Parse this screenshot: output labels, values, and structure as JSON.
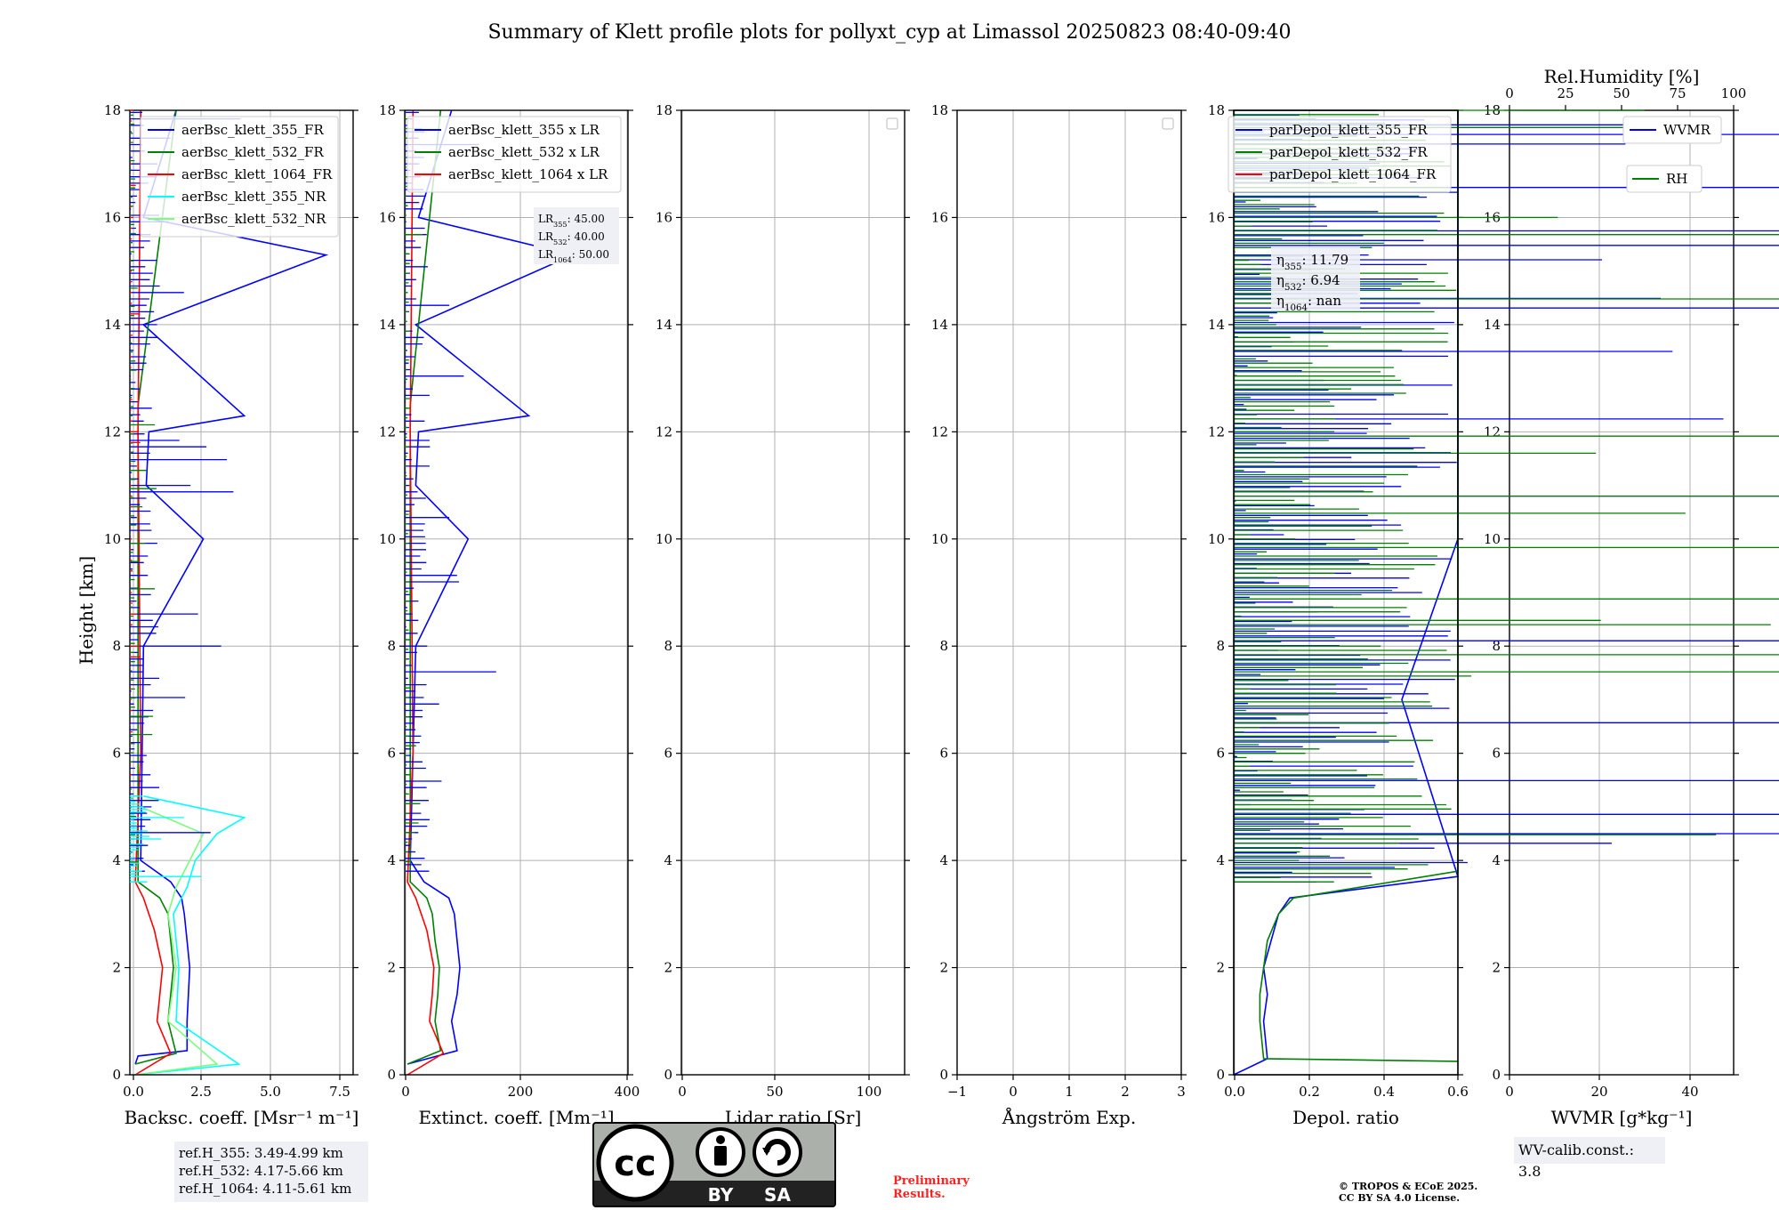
{
  "title": "Summary of Klett profile plots for pollyxt_cyp at Limassol 20250823 08:40-09:40",
  "y_label": "Height [km]",
  "y_ticks": [
    "0",
    "2",
    "4",
    "6",
    "8",
    "10",
    "12",
    "14",
    "16",
    "18"
  ],
  "panels": [
    {
      "xlabel": "Backsc. coeff. [Msr⁻¹ m⁻¹]",
      "xticks": [
        "0.0",
        "2.5",
        "5.0",
        "7.5"
      ],
      "legend": [
        "aerBsc_klett_355_FR",
        "aerBsc_klett_532_FR",
        "aerBsc_klett_1064_FR",
        "aerBsc_klett_355_NR",
        "aerBsc_klett_532_NR"
      ]
    },
    {
      "xlabel": "Extinct. coeff. [Mm⁻¹]",
      "xticks": [
        "0",
        "200",
        "400"
      ],
      "legend": [
        "aerBsc_klett_355 x LR",
        "aerBsc_klett_532 x LR",
        "aerBsc_klett_1064 x LR"
      ],
      "lr_box": {
        "lr355": "LR355: 45.00",
        "lr532": "LR532: 40.00",
        "lr1064": "LR1064: 50.00"
      }
    },
    {
      "xlabel": "Lidar ratio [Sr]",
      "xticks": [
        "0",
        "50",
        "100"
      ]
    },
    {
      "xlabel": "Ångström Exp.",
      "xticks": [
        "−1",
        "0",
        "1",
        "2",
        "3"
      ]
    },
    {
      "xlabel": "Depol. ratio",
      "xticks": [
        "0.0",
        "0.2",
        "0.4",
        "0.6"
      ],
      "legend": [
        "parDepol_klett_355_FR",
        "parDepol_klett_532_FR",
        "parDepol_klett_1064_FR"
      ],
      "eta_box": {
        "eta355": "η355: 11.79",
        "eta532": "η532: 6.94",
        "eta1064": "η1064: nan"
      }
    },
    {
      "xlabel": "WVMR [g*kg⁻¹]",
      "xticks": [
        "0",
        "20",
        "40"
      ],
      "top_label": "Rel.Humidity [%]",
      "top_ticks": [
        "0",
        "25",
        "50",
        "75",
        "100"
      ],
      "legend": [
        "WVMR",
        "RH"
      ]
    }
  ],
  "ref_heights": [
    "ref.H_355: 3.49-4.99 km",
    "ref.H_532: 4.17-5.66 km",
    "ref.H_1064: 4.11-5.61 km"
  ],
  "wv_calib": "WV-calib.const.: 3.8",
  "preliminary": [
    "Preliminary",
    "Results."
  ],
  "copyright": [
    "© TROPOS & ECoE 2025.",
    "CC BY SA 4.0 License."
  ],
  "license_logo": {
    "cc": "cc",
    "by": "BY",
    "sa": "SA"
  },
  "colors": {
    "c355": "#0000ff",
    "c532": "#008000",
    "c1064": "#ff0000",
    "c355nr": "#00ffff",
    "c532nr": "#7cfc7c",
    "grid": "#b0b0b0"
  },
  "chart_data": [
    {
      "type": "line",
      "title": "",
      "xlabel": "Backsc. coeff. [Msr⁻¹ m⁻¹]",
      "ylabel": "Height [km]",
      "xlim": [
        -0.2,
        8.0
      ],
      "ylim": [
        0,
        18
      ],
      "grid": true,
      "legend": "top-right",
      "series": [
        {
          "name": "aerBsc_klett_355_FR",
          "x": [
            0.0,
            0.1,
            1.9,
            1.9,
            2.0,
            1.9,
            1.8,
            1.7,
            1.3,
            0.2,
            0.3,
            2.5,
            0.4,
            0.5,
            4.0,
            0.3,
            7.0,
            0.3,
            1.5
          ],
          "y": [
            0.2,
            0.35,
            0.45,
            1.0,
            2.0,
            2.5,
            3.0,
            3.3,
            3.6,
            4.0,
            8.0,
            10.0,
            11.0,
            12.0,
            12.3,
            14.0,
            15.3,
            16.0,
            18.0
          ]
        },
        {
          "name": "aerBsc_klett_532_FR",
          "x": [
            0.0,
            1.5,
            1.2,
            1.3,
            1.4,
            1.3,
            1.2,
            0.9,
            0.1,
            0.1,
            0.1,
            1.5
          ],
          "y": [
            0.2,
            0.4,
            1.0,
            1.5,
            2.0,
            2.5,
            3.0,
            3.3,
            3.6,
            8.0,
            12.5,
            18.0
          ]
        },
        {
          "name": "aerBsc_klett_1064_FR",
          "x": [
            0.0,
            1.3,
            0.8,
            0.9,
            1.0,
            0.7,
            0.3,
            0.0,
            0.2,
            0.1,
            0.2
          ],
          "y": [
            0.0,
            0.4,
            1.0,
            1.5,
            2.0,
            2.7,
            3.3,
            3.6,
            6.0,
            12.0,
            18.0
          ]
        },
        {
          "name": "aerBsc_klett_355_NR",
          "x": [
            0.0,
            3.8,
            1.5,
            1.6,
            1.4,
            1.9,
            2.2,
            3.0,
            4.0,
            0.3
          ],
          "y": [
            0.0,
            0.2,
            1.0,
            2.0,
            3.0,
            3.5,
            4.0,
            4.5,
            4.8,
            5.2
          ]
        },
        {
          "name": "aerBsc_klett_532_NR",
          "x": [
            0.0,
            3.0,
            1.2,
            1.5,
            1.2,
            1.5,
            2.0,
            2.5,
            0.2
          ],
          "y": [
            0.0,
            0.2,
            1.0,
            2.0,
            3.0,
            3.5,
            4.0,
            4.5,
            5.0
          ]
        }
      ]
    },
    {
      "type": "line",
      "title": "",
      "xlabel": "Extinct. coeff. [Mm⁻¹]",
      "ylabel": "",
      "xlim": [
        -5,
        400
      ],
      "ylim": [
        0,
        18
      ],
      "grid": true,
      "legend": "top-right",
      "series": [
        {
          "name": "aerBsc_klett_355 x LR",
          "x": [
            0,
            90,
            80,
            90,
            95,
            90,
            85,
            75,
            30,
            5,
            15,
            110,
            15,
            20,
            220,
            15,
            300,
            20,
            80
          ],
          "y": [
            0.2,
            0.45,
            1.0,
            1.5,
            2.0,
            2.5,
            3.0,
            3.3,
            3.6,
            4.0,
            8.0,
            10.0,
            11.0,
            12.0,
            12.3,
            14.0,
            15.3,
            16.0,
            18.0
          ]
        },
        {
          "name": "aerBsc_klett_532 x LR",
          "x": [
            0,
            60,
            50,
            55,
            58,
            50,
            45,
            35,
            5,
            5,
            5,
            60
          ],
          "y": [
            0.2,
            0.45,
            1.0,
            1.5,
            2.0,
            2.5,
            3.0,
            3.3,
            3.6,
            8.0,
            12.5,
            18.0
          ]
        },
        {
          "name": "aerBsc_klett_1064 x LR",
          "x": [
            0,
            65,
            40,
            45,
            48,
            35,
            15,
            0,
            10,
            5,
            10
          ],
          "y": [
            0.0,
            0.4,
            1.0,
            1.5,
            2.0,
            2.7,
            3.3,
            3.6,
            6.0,
            12.0,
            18.0
          ]
        }
      ]
    },
    {
      "type": "line",
      "title": "",
      "xlabel": "Lidar ratio [Sr]",
      "ylabel": "",
      "xlim": [
        0,
        120
      ],
      "ylim": [
        0,
        18
      ],
      "grid": true,
      "series": []
    },
    {
      "type": "line",
      "title": "",
      "xlabel": "Ångström Exp.",
      "ylabel": "",
      "xlim": [
        -1,
        3
      ],
      "ylim": [
        0,
        18
      ],
      "grid": true,
      "series": []
    },
    {
      "type": "line",
      "title": "",
      "xlabel": "Depol. ratio",
      "ylabel": "",
      "xlim": [
        0,
        0.6
      ],
      "ylim": [
        0,
        18
      ],
      "grid": true,
      "legend": "top-right",
      "series": [
        {
          "name": "parDepol_klett_355_FR",
          "x": [
            0.0,
            0.09,
            0.08,
            0.09,
            0.08,
            0.1,
            0.12,
            0.15,
            0.6,
            0.45,
            0.6,
            0.6,
            0.6
          ],
          "y": [
            0.0,
            0.3,
            1.0,
            1.5,
            2.0,
            2.5,
            3.0,
            3.3,
            3.7,
            7.0,
            10.0,
            14.0,
            18.0
          ]
        },
        {
          "name": "parDepol_klett_532_FR",
          "x": [
            0.6,
            0.08,
            0.07,
            0.07,
            0.08,
            0.09,
            0.12,
            0.16,
            0.6,
            0.6,
            0.6,
            0.6
          ],
          "y": [
            0.25,
            0.3,
            1.0,
            1.5,
            2.0,
            2.5,
            3.0,
            3.3,
            3.8,
            6.0,
            11.0,
            18.0
          ]
        }
      ]
    },
    {
      "type": "line",
      "title": "",
      "xlabel": "WVMR [g*kg⁻¹]",
      "ylabel": "",
      "xlim": [
        0,
        50
      ],
      "ylim": [
        0,
        18
      ],
      "grid": true,
      "legend": "top-right",
      "series": []
    }
  ]
}
